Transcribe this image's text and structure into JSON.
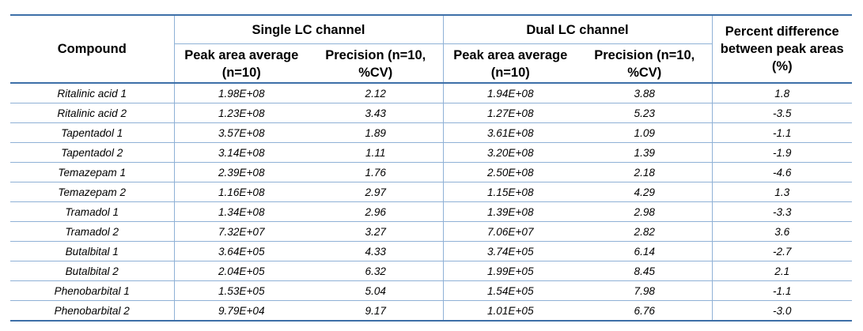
{
  "headers": {
    "compound": "Compound",
    "single_group": "Single LC channel",
    "dual_group": "Dual LC channel",
    "percent_diff": "Percent difference between peak areas (%)",
    "peak_area": "Peak area average (n=10)",
    "precision": "Precision (n=10, %CV)"
  },
  "rows": [
    {
      "compound": "Ritalinic acid 1",
      "single_area": "1.98E+08",
      "single_prec": "2.12",
      "dual_area": "1.94E+08",
      "dual_prec": "3.88",
      "diff": "1.8"
    },
    {
      "compound": "Ritalinic acid 2",
      "single_area": "1.23E+08",
      "single_prec": "3.43",
      "dual_area": "1.27E+08",
      "dual_prec": "5.23",
      "diff": "-3.5"
    },
    {
      "compound": "Tapentadol 1",
      "single_area": "3.57E+08",
      "single_prec": "1.89",
      "dual_area": "3.61E+08",
      "dual_prec": "1.09",
      "diff": "-1.1"
    },
    {
      "compound": "Tapentadol 2",
      "single_area": "3.14E+08",
      "single_prec": "1.11",
      "dual_area": "3.20E+08",
      "dual_prec": "1.39",
      "diff": "-1.9"
    },
    {
      "compound": "Temazepam 1",
      "single_area": "2.39E+08",
      "single_prec": "1.76",
      "dual_area": "2.50E+08",
      "dual_prec": "2.18",
      "diff": "-4.6"
    },
    {
      "compound": "Temazepam 2",
      "single_area": "1.16E+08",
      "single_prec": "2.97",
      "dual_area": "1.15E+08",
      "dual_prec": "4.29",
      "diff": "1.3"
    },
    {
      "compound": "Tramadol 1",
      "single_area": "1.34E+08",
      "single_prec": "2.96",
      "dual_area": "1.39E+08",
      "dual_prec": "2.98",
      "diff": "-3.3"
    },
    {
      "compound": "Tramadol 2",
      "single_area": "7.32E+07",
      "single_prec": "3.27",
      "dual_area": "7.06E+07",
      "dual_prec": "2.82",
      "diff": "3.6"
    },
    {
      "compound": "Butalbital 1",
      "single_area": "3.64E+05",
      "single_prec": "4.33",
      "dual_area": "3.74E+05",
      "dual_prec": "6.14",
      "diff": "-2.7"
    },
    {
      "compound": "Butalbital 2",
      "single_area": "2.04E+05",
      "single_prec": "6.32",
      "dual_area": "1.99E+05",
      "dual_prec": "8.45",
      "diff": "2.1"
    },
    {
      "compound": "Phenobarbital 1",
      "single_area": "1.53E+05",
      "single_prec": "5.04",
      "dual_area": "1.54E+05",
      "dual_prec": "7.98",
      "diff": "-1.1"
    },
    {
      "compound": "Phenobarbital 2",
      "single_area": "9.79E+04",
      "single_prec": "9.17",
      "dual_area": "1.01E+05",
      "dual_prec": "6.76",
      "diff": "-3.0"
    }
  ]
}
